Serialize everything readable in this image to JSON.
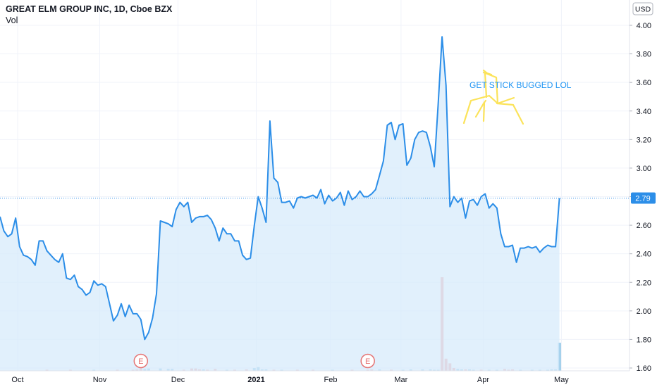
{
  "header": {
    "title": "GREAT ELM GROUP INC, 1D, Cboe BZX",
    "volume_label": "Vol",
    "currency": "USD"
  },
  "annotation": {
    "text": "GET STICK BUGGED LOL",
    "color": "#2196f3",
    "doodle_color": "#fbe35a"
  },
  "earnings_marker": "E",
  "last_price_label": "2.79",
  "colors": {
    "line": "#2c8ee8",
    "fill": "#d7ebfb",
    "up": "#8ec5e6",
    "down": "#f4a3a3",
    "grid": "#f0f3fa",
    "earnings": "#e57373"
  },
  "chart_data": {
    "type": "line",
    "title": "GREAT ELM GROUP INC, 1D, Cboe BZX",
    "ylim": [
      1.58,
      4.08
    ],
    "y_ticks": [
      "1.60",
      "1.80",
      "2.00",
      "2.20",
      "2.40",
      "2.60",
      "2.80",
      "3.00",
      "3.20",
      "3.40",
      "3.60",
      "3.80",
      "4.00"
    ],
    "x_ticks": [
      {
        "label": "Oct",
        "index": 4.5
      },
      {
        "label": "Nov",
        "index": 25.5
      },
      {
        "label": "Dec",
        "index": 45.5
      },
      {
        "label": "2021",
        "index": 65.5,
        "bold": true
      },
      {
        "label": "Feb",
        "index": 84.5
      },
      {
        "label": "Mar",
        "index": 102.5
      },
      {
        "label": "Apr",
        "index": 123.5
      },
      {
        "label": "May",
        "index": 143.5
      }
    ],
    "last_value": 2.79,
    "earnings_indices": [
      36,
      94
    ],
    "series": [
      {
        "values": [
          2.66,
          2.56,
          2.52,
          2.54,
          2.65,
          2.45,
          2.39,
          2.38,
          2.36,
          2.32,
          2.49,
          2.49,
          2.42,
          2.39,
          2.36,
          2.34,
          2.4,
          2.23,
          2.22,
          2.25,
          2.17,
          2.15,
          2.11,
          2.13,
          2.21,
          2.18,
          2.19,
          2.17,
          2.05,
          1.93,
          1.97,
          2.05,
          1.96,
          2.04,
          1.98,
          1.98,
          1.94,
          1.8,
          1.85,
          1.95,
          2.12,
          2.63,
          2.62,
          2.61,
          2.59,
          2.71,
          2.76,
          2.73,
          2.76,
          2.62,
          2.65,
          2.66,
          2.66,
          2.67,
          2.64,
          2.58,
          2.49,
          2.58,
          2.54,
          2.54,
          2.49,
          2.49,
          2.39,
          2.36,
          2.37,
          2.6,
          2.8,
          2.72,
          2.62,
          3.33,
          2.93,
          2.9,
          2.76,
          2.76,
          2.77,
          2.72,
          2.79,
          2.8,
          2.79,
          2.8,
          2.81,
          2.79,
          2.85,
          2.75,
          2.81,
          2.77,
          2.79,
          2.83,
          2.74,
          2.84,
          2.78,
          2.8,
          2.84,
          2.8,
          2.8,
          2.82,
          2.85,
          2.95,
          3.05,
          3.3,
          3.32,
          3.2,
          3.3,
          3.31,
          3.02,
          3.07,
          3.2,
          3.25,
          3.26,
          3.25,
          3.15,
          3.01,
          3.45,
          3.92,
          3.58,
          2.73,
          2.8,
          2.76,
          2.79,
          2.65,
          2.77,
          2.78,
          2.74,
          2.8,
          2.82,
          2.72,
          2.75,
          2.72,
          2.54,
          2.45,
          2.45,
          2.46,
          2.34,
          2.44,
          2.44,
          2.45,
          2.44,
          2.45,
          2.41,
          2.44,
          2.46,
          2.45,
          2.45,
          2.79
        ]
      }
    ],
    "volume": [
      {
        "index": 12,
        "v": 1,
        "dir": "down"
      },
      {
        "index": 18,
        "v": 1,
        "dir": "down"
      },
      {
        "index": 24,
        "v": 1,
        "dir": "up"
      },
      {
        "index": 30,
        "v": 1,
        "dir": "down"
      },
      {
        "index": 34,
        "v": 1,
        "dir": "down"
      },
      {
        "index": 35,
        "v": 1.5,
        "dir": "down"
      },
      {
        "index": 36,
        "v": 3,
        "dir": "down"
      },
      {
        "index": 37,
        "v": 2,
        "dir": "up"
      },
      {
        "index": 38,
        "v": 2.5,
        "dir": "up"
      },
      {
        "index": 41,
        "v": 2.5,
        "dir": "up"
      },
      {
        "index": 43,
        "v": 2,
        "dir": "up"
      },
      {
        "index": 44,
        "v": 2,
        "dir": "up"
      },
      {
        "index": 47,
        "v": 1,
        "dir": "down"
      },
      {
        "index": 49,
        "v": 2.5,
        "dir": "down"
      },
      {
        "index": 50,
        "v": 2.5,
        "dir": "down"
      },
      {
        "index": 51,
        "v": 1.5,
        "dir": "down"
      },
      {
        "index": 52,
        "v": 1.5,
        "dir": "up"
      },
      {
        "index": 53,
        "v": 1,
        "dir": "down"
      },
      {
        "index": 55,
        "v": 2,
        "dir": "down"
      },
      {
        "index": 58,
        "v": 1,
        "dir": "up"
      },
      {
        "index": 60,
        "v": 1,
        "dir": "down"
      },
      {
        "index": 63,
        "v": 1.5,
        "dir": "down"
      },
      {
        "index": 65,
        "v": 3,
        "dir": "up"
      },
      {
        "index": 66,
        "v": 4,
        "dir": "up"
      },
      {
        "index": 67,
        "v": 1.5,
        "dir": "up"
      },
      {
        "index": 68,
        "v": 1.5,
        "dir": "up"
      },
      {
        "index": 70,
        "v": 1,
        "dir": "down"
      },
      {
        "index": 72,
        "v": 1,
        "dir": "up"
      },
      {
        "index": 76,
        "v": 1,
        "dir": "down"
      },
      {
        "index": 80,
        "v": 1,
        "dir": "down"
      },
      {
        "index": 85,
        "v": 1,
        "dir": "up"
      },
      {
        "index": 90,
        "v": 1,
        "dir": "down"
      },
      {
        "index": 94,
        "v": 1,
        "dir": "down"
      },
      {
        "index": 95,
        "v": 1.5,
        "dir": "down"
      },
      {
        "index": 97,
        "v": 1.5,
        "dir": "up"
      },
      {
        "index": 100,
        "v": 1,
        "dir": "down"
      },
      {
        "index": 103,
        "v": 1,
        "dir": "up"
      },
      {
        "index": 105,
        "v": 1.5,
        "dir": "up"
      },
      {
        "index": 108,
        "v": 1.5,
        "dir": "up"
      },
      {
        "index": 110,
        "v": 1.5,
        "dir": "up"
      },
      {
        "index": 111,
        "v": 1,
        "dir": "up"
      },
      {
        "index": 112,
        "v": 1,
        "dir": "up"
      },
      {
        "index": 113,
        "v": 100,
        "dir": "down"
      },
      {
        "index": 114,
        "v": 13,
        "dir": "down"
      },
      {
        "index": 115,
        "v": 8,
        "dir": "down"
      },
      {
        "index": 116,
        "v": 3,
        "dir": "down"
      },
      {
        "index": 117,
        "v": 2,
        "dir": "up"
      },
      {
        "index": 118,
        "v": 1.5,
        "dir": "up"
      },
      {
        "index": 119,
        "v": 1.5,
        "dir": "down"
      },
      {
        "index": 120,
        "v": 1.5,
        "dir": "up"
      },
      {
        "index": 121,
        "v": 1,
        "dir": "up"
      },
      {
        "index": 123,
        "v": 1,
        "dir": "down"
      },
      {
        "index": 125,
        "v": 1,
        "dir": "up"
      },
      {
        "index": 127,
        "v": 1,
        "dir": "up"
      },
      {
        "index": 129,
        "v": 2,
        "dir": "down"
      },
      {
        "index": 130,
        "v": 1,
        "dir": "down"
      },
      {
        "index": 131,
        "v": 1.5,
        "dir": "down"
      },
      {
        "index": 133,
        "v": 1,
        "dir": "up"
      },
      {
        "index": 136,
        "v": 1,
        "dir": "up"
      },
      {
        "index": 138,
        "v": 1,
        "dir": "up"
      },
      {
        "index": 140,
        "v": 1,
        "dir": "up"
      },
      {
        "index": 141,
        "v": 1.5,
        "dir": "up"
      },
      {
        "index": 142,
        "v": 1.5,
        "dir": "up"
      },
      {
        "index": 143,
        "v": 30,
        "dir": "up"
      }
    ]
  }
}
